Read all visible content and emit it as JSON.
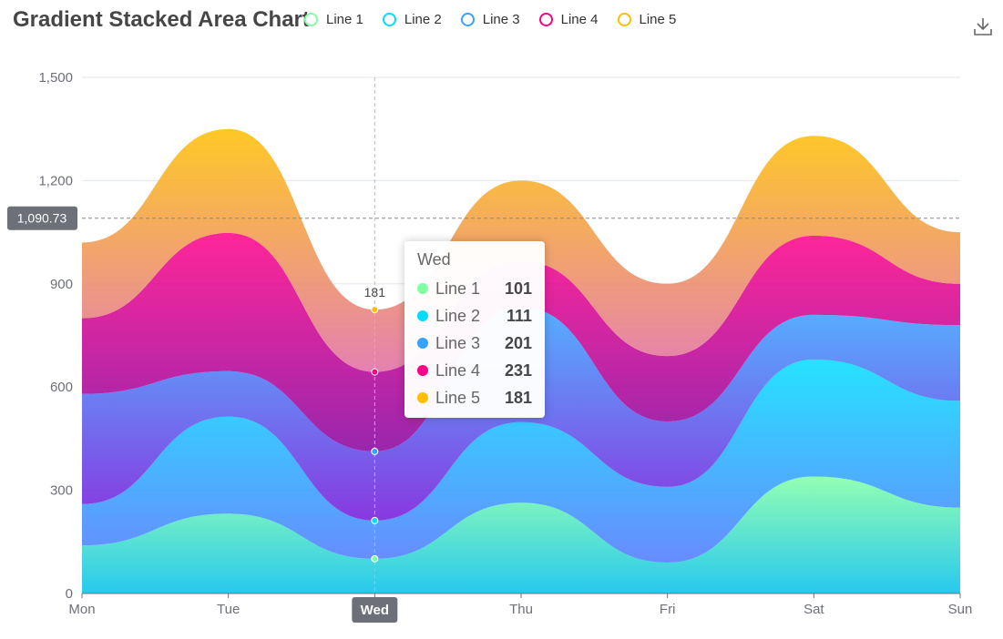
{
  "title": "Gradient Stacked Area Chart",
  "legend": [
    {
      "name": "Line 1",
      "color": "#80FFA5"
    },
    {
      "name": "Line 2",
      "color": "#00DDFF"
    },
    {
      "name": "Line 3",
      "color": "#37A2FF"
    },
    {
      "name": "Line 4",
      "color": "#FF0087"
    },
    {
      "name": "Line 5",
      "color": "#FFBF00"
    }
  ],
  "toolbar": {
    "download_icon": "download-icon"
  },
  "axis_pointer": {
    "y_label": "1,090.73",
    "x_label": "Wed"
  },
  "point_label": "181",
  "tooltip": {
    "title": "Wed",
    "rows": [
      {
        "name": "Line 1",
        "value": "101",
        "color": "#80FFA5"
      },
      {
        "name": "Line 2",
        "value": "111",
        "color": "#00DDFF"
      },
      {
        "name": "Line 3",
        "value": "201",
        "color": "#37A2FF"
      },
      {
        "name": "Line 4",
        "value": "231",
        "color": "#FF0087"
      },
      {
        "name": "Line 5",
        "value": "181",
        "color": "#FFBF00"
      }
    ]
  },
  "chart_data": {
    "type": "area",
    "stacked": true,
    "smooth": true,
    "title": "Gradient Stacked Area Chart",
    "categories": [
      "Mon",
      "Tue",
      "Wed",
      "Thu",
      "Fri",
      "Sat",
      "Sun"
    ],
    "ylim": [
      0,
      1500
    ],
    "yticks": [
      0,
      300,
      600,
      900,
      1200,
      1500
    ],
    "ytick_labels": [
      "0",
      "300",
      "600",
      "900",
      "1,200",
      "1,500"
    ],
    "grid": true,
    "legend_position": "top",
    "series": [
      {
        "name": "Line 1",
        "values": [
          140,
          232,
          101,
          264,
          90,
          340,
          250
        ],
        "gradient": [
          "#80FFA5",
          "#01BFEC"
        ]
      },
      {
        "name": "Line 2",
        "values": [
          120,
          282,
          111,
          234,
          220,
          340,
          310
        ],
        "gradient": [
          "#00DDFF",
          "#4D77FF"
        ]
      },
      {
        "name": "Line 3",
        "values": [
          320,
          132,
          201,
          334,
          190,
          130,
          220
        ],
        "gradient": [
          "#37A2FF",
          "#7415DB"
        ]
      },
      {
        "name": "Line 4",
        "values": [
          220,
          402,
          231,
          134,
          190,
          230,
          120
        ],
        "gradient": [
          "#FF0087",
          "#87009E"
        ]
      },
      {
        "name": "Line 5",
        "values": [
          220,
          302,
          181,
          234,
          210,
          290,
          150
        ],
        "gradient": [
          "#FFBF00",
          "#E06AA3"
        ]
      }
    ]
  }
}
